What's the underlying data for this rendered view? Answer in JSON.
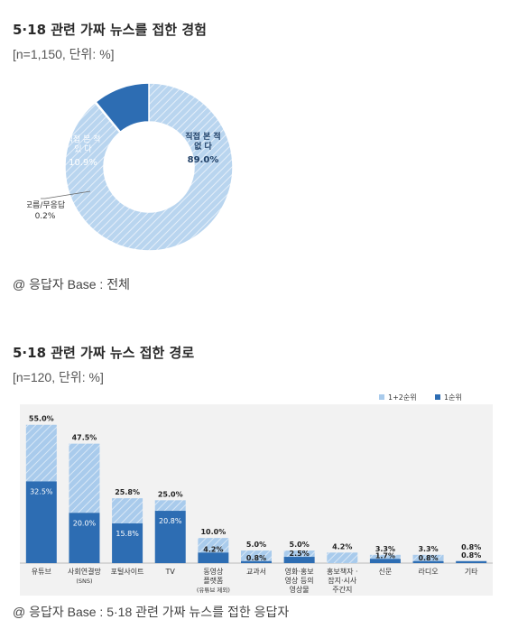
{
  "section1": {
    "title": "5·18 관련 가짜 뉴스를 접한 경험",
    "subtitle": "[n=1,150, 단위: %]",
    "note": "@ 응답자 Base : 전체"
  },
  "section2": {
    "title": "5·18 관련 가짜 뉴스 접한 경로",
    "subtitle": "[n=120, 단위: %]",
    "note": "@ 응답자 Base : 5·18 관련 가짜 뉴스를 접한 응답자"
  },
  "colors": {
    "light": "#a9cbec",
    "dark": "#2d6db3",
    "hatch": "#c9def3"
  },
  "chart_data": [
    {
      "type": "pie",
      "subtype": "donut",
      "slices": [
        {
          "label": [
            "직접 본 적",
            "없 다"
          ],
          "value": 89.0,
          "display": "89.0%"
        },
        {
          "label": [
            "직접 본 적",
            "있 다"
          ],
          "value": 10.9,
          "display": "10.9%"
        },
        {
          "label": [
            "모름/무응답"
          ],
          "value": 0.2,
          "display": "0.2%"
        }
      ]
    },
    {
      "type": "bar",
      "legend": [
        "1+2순위",
        "1순위"
      ],
      "legend_position": "top-right",
      "categories": [
        [
          "유튜브"
        ],
        [
          "사회연결망",
          "(SNS)"
        ],
        [
          "포털사이트"
        ],
        [
          "TV"
        ],
        [
          "동영상",
          "플랫폼",
          "(유튜브 제외)"
        ],
        [
          "교과서"
        ],
        [
          "영화·홍보",
          "영상 등의",
          "영상물"
        ],
        [
          "홍보책자 ·",
          "잡지·시사",
          "주간지"
        ],
        [
          "신문"
        ],
        [
          "라디오"
        ],
        [
          "기타"
        ]
      ],
      "series": [
        {
          "name": "1+2순위",
          "values": [
            55.0,
            47.5,
            25.8,
            25.0,
            10.0,
            5.0,
            5.0,
            4.2,
            3.3,
            3.3,
            0.8
          ],
          "labels": [
            "55.0%",
            "47.5%",
            "25.8%",
            "25.0%",
            "10.0%",
            "5.0%",
            "5.0%",
            "4.2%",
            "3.3%",
            "3.3%",
            "0.8%"
          ]
        },
        {
          "name": "1순위",
          "values": [
            32.5,
            20.0,
            15.8,
            20.8,
            4.2,
            0.8,
            2.5,
            0.0,
            1.7,
            0.8,
            0.8
          ],
          "labels": [
            "32.5%",
            "20.0%",
            "15.8%",
            "20.8%",
            "4.2%",
            "0.8%",
            "2.5%",
            "",
            "1.7%",
            "0.8%",
            "0.8%"
          ]
        }
      ],
      "ylim": [
        0,
        60
      ]
    }
  ]
}
